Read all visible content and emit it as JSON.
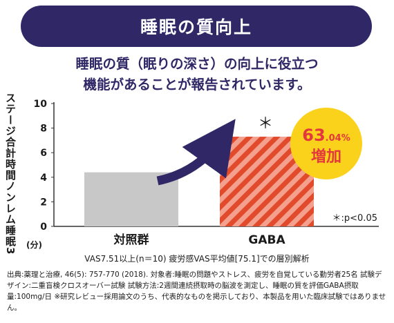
{
  "banner": {
    "title": "睡眠の質向上"
  },
  "headline": {
    "line1": "睡眠の質（眠りの深さ）の向上に役立つ",
    "line2": "機能があることが報告されています。"
  },
  "chart_data": {
    "type": "bar",
    "categories": [
      "対照群",
      "GABA"
    ],
    "values": [
      4.4,
      7.3
    ],
    "ylabel": "ステージ合計時間ノンレム睡眠3",
    "yunit": "(分)",
    "ylim": [
      0,
      10
    ],
    "yticks": [
      0,
      2,
      4,
      6,
      8,
      10
    ],
    "colors": {
      "control": "#c8c8c8",
      "gaba_light": "#f3a08f",
      "gaba_dark": "#e24a2c",
      "arrow": "#2f2766"
    },
    "significance_mark": "＊",
    "significance_note": "＊:p<0.05",
    "badge": {
      "value": "63",
      "decimal": ".04%",
      "label": "増加",
      "color": "#fbd21b",
      "text_color": "#e4393c"
    }
  },
  "condition_note": "VAS7.51以上(n＝10)  疲労感VAS平均値[75.1]での層別解析",
  "footnote": "出典:薬理と治療, 46(5): 757-770 (2018).  対象者:睡眠の問題やストレス、疲労を自覚している勤労者25名  試験デザイン:二重盲検クロスオーバー試験  試験方法:2週間連続摂取時の脳波を測定し、睡眠の質を評価GABA摂取量:100mg/日 ※研究レビュー採用論文のうち、代表的なものを掲示しており、本製品を用いた臨床試験ではありません。"
}
